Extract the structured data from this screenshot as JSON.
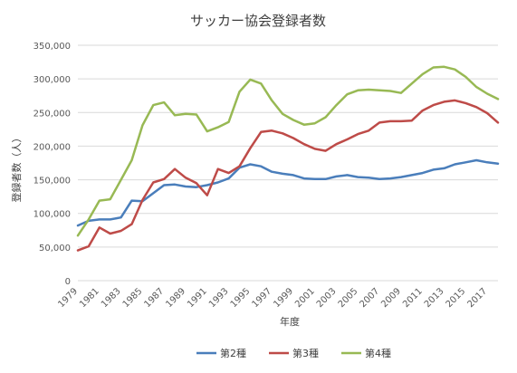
{
  "chart_data": {
    "type": "line",
    "title": "サッカー協会登録者数",
    "xlabel": "年度",
    "ylabel": "登録者数（人）",
    "ylim": [
      0,
      350000
    ],
    "y_ticks": [
      0,
      50000,
      100000,
      150000,
      200000,
      250000,
      300000,
      350000
    ],
    "y_tick_labels": [
      "0",
      "50,000",
      "100,000",
      "150,000",
      "200,000",
      "250,000",
      "300,000",
      "350,000"
    ],
    "x": [
      1979,
      1980,
      1981,
      1982,
      1983,
      1984,
      1985,
      1986,
      1987,
      1988,
      1989,
      1990,
      1991,
      1992,
      1993,
      1994,
      1995,
      1996,
      1997,
      1998,
      1999,
      2000,
      2001,
      2002,
      2003,
      2004,
      2005,
      2006,
      2007,
      2008,
      2009,
      2010,
      2011,
      2012,
      2013,
      2014,
      2015,
      2016,
      2017,
      2018
    ],
    "x_tick_labels": [
      "1979",
      "1981",
      "1983",
      "1985",
      "1987",
      "1989",
      "1991",
      "1993",
      "1995",
      "1997",
      "1999",
      "2001",
      "2003",
      "2005",
      "2007",
      "2009",
      "2011",
      "2013",
      "2015",
      "2017"
    ],
    "grid": true,
    "legend_position": "bottom",
    "series": [
      {
        "name": "第2種",
        "color": "#4a7ebb",
        "values": [
          82000,
          89000,
          91000,
          91000,
          94000,
          119000,
          118000,
          130000,
          142000,
          143000,
          140000,
          139000,
          142000,
          146000,
          152000,
          168000,
          173000,
          170000,
          162000,
          159000,
          157000,
          152000,
          151000,
          151000,
          155000,
          157000,
          154000,
          153000,
          151000,
          152000,
          154000,
          157000,
          160000,
          165000,
          167000,
          173000,
          176000,
          179000,
          176000,
          174000
        ]
      },
      {
        "name": "第3種",
        "color": "#be4b48",
        "values": [
          45000,
          51000,
          79000,
          70000,
          74000,
          84000,
          120000,
          146000,
          151000,
          166000,
          153000,
          145000,
          127000,
          166000,
          160000,
          170000,
          197000,
          221000,
          223000,
          219000,
          212000,
          203000,
          196000,
          193000,
          203000,
          210000,
          218000,
          223000,
          235000,
          237000,
          237000,
          238000,
          253000,
          261000,
          266000,
          268000,
          264000,
          258000,
          249000,
          235000
        ]
      },
      {
        "name": "第4種",
        "color": "#98b954",
        "values": [
          67000,
          91000,
          119000,
          121000,
          150000,
          179000,
          231000,
          261000,
          265000,
          246000,
          248000,
          247000,
          222000,
          228000,
          236000,
          281000,
          299000,
          293000,
          268000,
          248000,
          239000,
          232000,
          234000,
          243000,
          261000,
          277000,
          283000,
          284000,
          283000,
          282000,
          279000,
          293000,
          307000,
          317000,
          318000,
          314000,
          303000,
          288000,
          278000,
          270000
        ]
      }
    ]
  }
}
